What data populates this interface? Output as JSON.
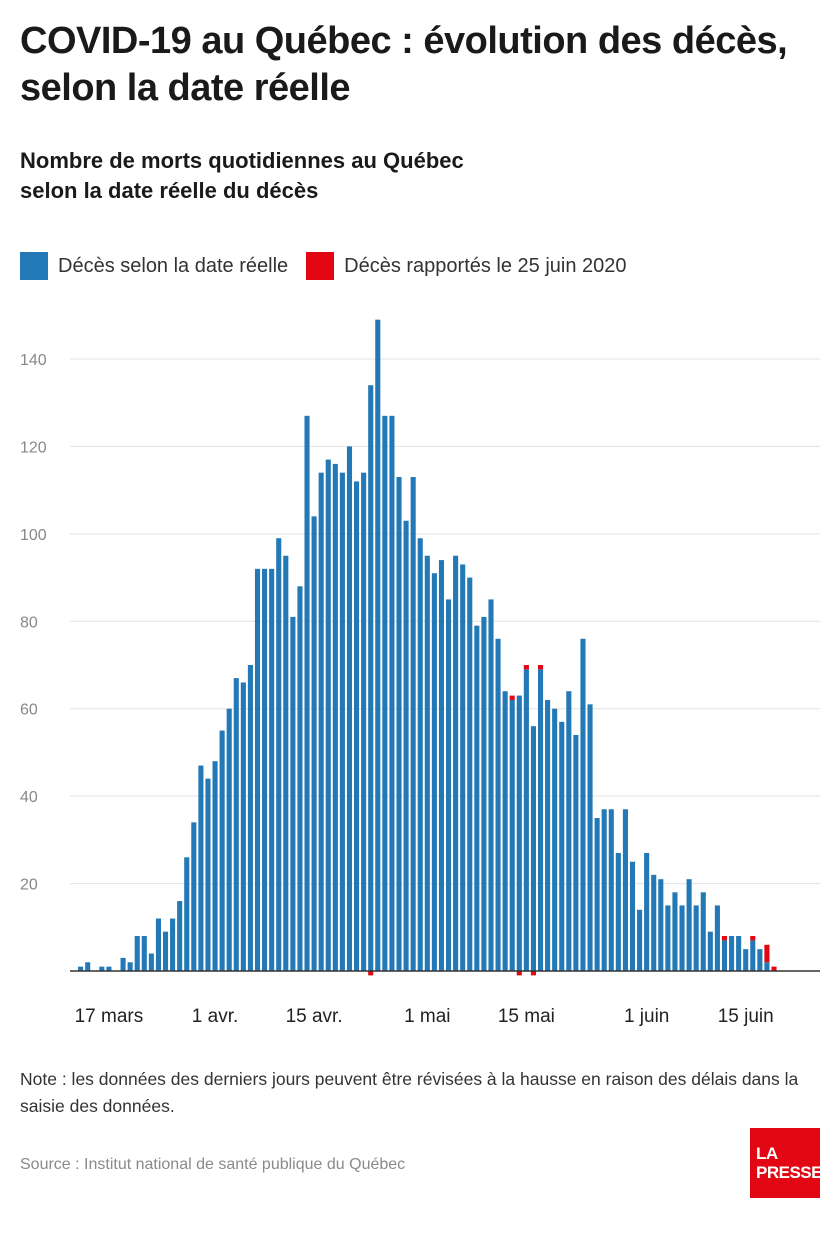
{
  "header": {
    "title": "COVID-19 au Québec : évolution des décès, selon la date réelle",
    "subtitle_line1": "Nombre de morts quotidiennes au Québec",
    "subtitle_line2": "selon la date réelle du décès"
  },
  "legend": {
    "items": [
      {
        "label": "Décès selon la date réelle",
        "color": "#2379b5"
      },
      {
        "label": "Décès rapportés le 25 juin 2020",
        "color": "#e30613"
      }
    ]
  },
  "chart_data": {
    "type": "bar",
    "stacked": true,
    "x_start_date": "2020-03-12",
    "x_end_date": "2020-06-25",
    "x_tick_labels": [
      "17 mars",
      "1 avr.",
      "15 avr.",
      "1 mai",
      "15 mai",
      "1 juin",
      "15 juin"
    ],
    "y_ticks": [
      20,
      40,
      60,
      80,
      100,
      120,
      140
    ],
    "ylim": [
      0,
      150
    ],
    "grid": true,
    "series": [
      {
        "name": "Décès selon la date réelle",
        "color": "#2379b5",
        "values": [
          0,
          1,
          2,
          0,
          1,
          1,
          0,
          3,
          2,
          8,
          8,
          4,
          12,
          9,
          12,
          16,
          26,
          34,
          47,
          44,
          48,
          55,
          60,
          67,
          66,
          70,
          92,
          92,
          92,
          99,
          95,
          81,
          88,
          127,
          104,
          114,
          117,
          116,
          114,
          120,
          112,
          114,
          134,
          149,
          127,
          127,
          113,
          103,
          113,
          99,
          95,
          91,
          94,
          85,
          95,
          93,
          90,
          79,
          81,
          85,
          76,
          64,
          62,
          63,
          69,
          56,
          69,
          62,
          60,
          57,
          64,
          54,
          76,
          61,
          35,
          37,
          37,
          27,
          37,
          25,
          14,
          27,
          22,
          21,
          15,
          18,
          15,
          21,
          15,
          18,
          9,
          15,
          7,
          8,
          8,
          5,
          7,
          5,
          2,
          0
        ]
      },
      {
        "name": "Décès rapportés le 25 juin 2020",
        "color": "#e30613",
        "values": [
          0,
          0,
          0,
          0,
          0,
          0,
          0,
          0,
          0,
          0,
          0,
          0,
          0,
          0,
          0,
          0,
          0,
          0,
          0,
          0,
          0,
          0,
          0,
          0,
          0,
          0,
          0,
          0,
          0,
          0,
          0,
          0,
          0,
          0,
          0,
          0,
          0,
          0,
          0,
          0,
          0,
          0,
          -1,
          0,
          0,
          0,
          0,
          0,
          0,
          0,
          0,
          0,
          0,
          0,
          0,
          0,
          0,
          0,
          0,
          0,
          0,
          0,
          1,
          -1,
          1,
          -1,
          1,
          0,
          0,
          0,
          0,
          0,
          0,
          0,
          0,
          0,
          0,
          0,
          0,
          0,
          0,
          0,
          0,
          0,
          0,
          0,
          0,
          0,
          0,
          0,
          0,
          0,
          1,
          0,
          0,
          0,
          1,
          0,
          4,
          1
        ]
      }
    ]
  },
  "footer": {
    "note": "Note : les données des derniers jours peuvent être révisées à la hausse en raison des délais dans la saisie des données.",
    "source": "Source : Institut national de santé publique du Québec",
    "logo_line1": "LA",
    "logo_line2": "PRESSE"
  }
}
